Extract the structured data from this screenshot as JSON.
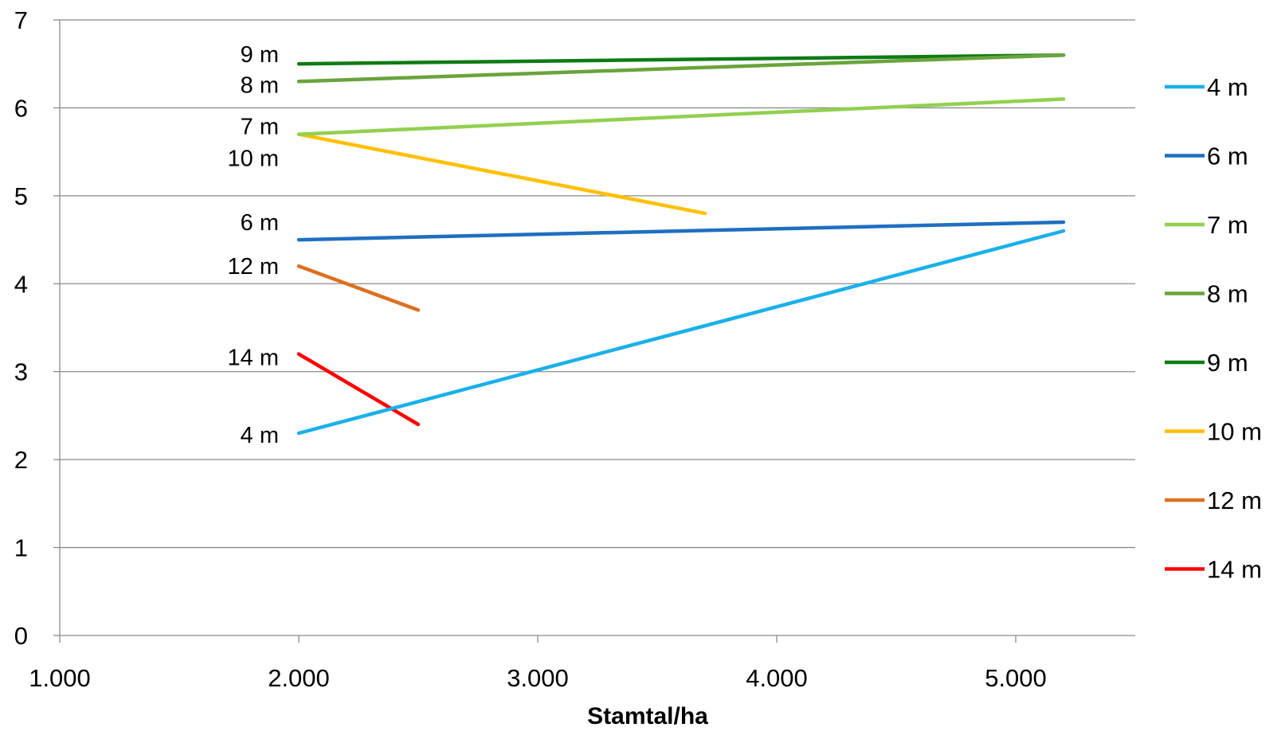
{
  "chart_data": {
    "type": "line",
    "title": "",
    "xlabel": "Stamtal/ha",
    "ylabel": "",
    "xlim": [
      1000,
      5500
    ],
    "ylim": [
      0,
      7
    ],
    "x_ticks": [
      1000,
      2000,
      3000,
      4000,
      5000
    ],
    "x_tick_labels": [
      "1.000",
      "2.000",
      "3.000",
      "4.000",
      "5.000"
    ],
    "y_ticks": [
      0,
      1,
      2,
      3,
      4,
      5,
      6,
      7
    ],
    "y_tick_labels": [
      "0",
      "1",
      "2",
      "3",
      "4",
      "5",
      "6",
      "7"
    ],
    "grid": "horizontal",
    "legend_position": "right",
    "series": [
      {
        "name": "4 m",
        "color": "#1ab0ea",
        "x": [
          2000,
          5200
        ],
        "y": [
          2.3,
          4.6
        ],
        "label": "4 m"
      },
      {
        "name": "6 m",
        "color": "#1f6fc1",
        "x": [
          2000,
          5200
        ],
        "y": [
          4.5,
          4.7
        ],
        "label": "6 m"
      },
      {
        "name": "7 m",
        "color": "#92d050",
        "x": [
          2000,
          5200
        ],
        "y": [
          5.7,
          6.1
        ],
        "label": "7 m"
      },
      {
        "name": "8 m",
        "color": "#6aa43c",
        "x": [
          2000,
          5200
        ],
        "y": [
          6.3,
          6.6
        ],
        "label": "8 m"
      },
      {
        "name": "9 m",
        "color": "#0f7b14",
        "x": [
          2000,
          5200
        ],
        "y": [
          6.5,
          6.6
        ],
        "label": "9 m"
      },
      {
        "name": "10 m",
        "color": "#ffc000",
        "x": [
          2000,
          3700
        ],
        "y": [
          5.7,
          4.8
        ],
        "label": "10 m"
      },
      {
        "name": "12 m",
        "color": "#dd6f1f",
        "x": [
          2000,
          2500
        ],
        "y": [
          4.2,
          3.7
        ],
        "label": "12 m"
      },
      {
        "name": "14 m",
        "color": "#ff0000",
        "x": [
          2000,
          2500
        ],
        "y": [
          3.2,
          2.4
        ],
        "label": "14 m"
      }
    ]
  }
}
